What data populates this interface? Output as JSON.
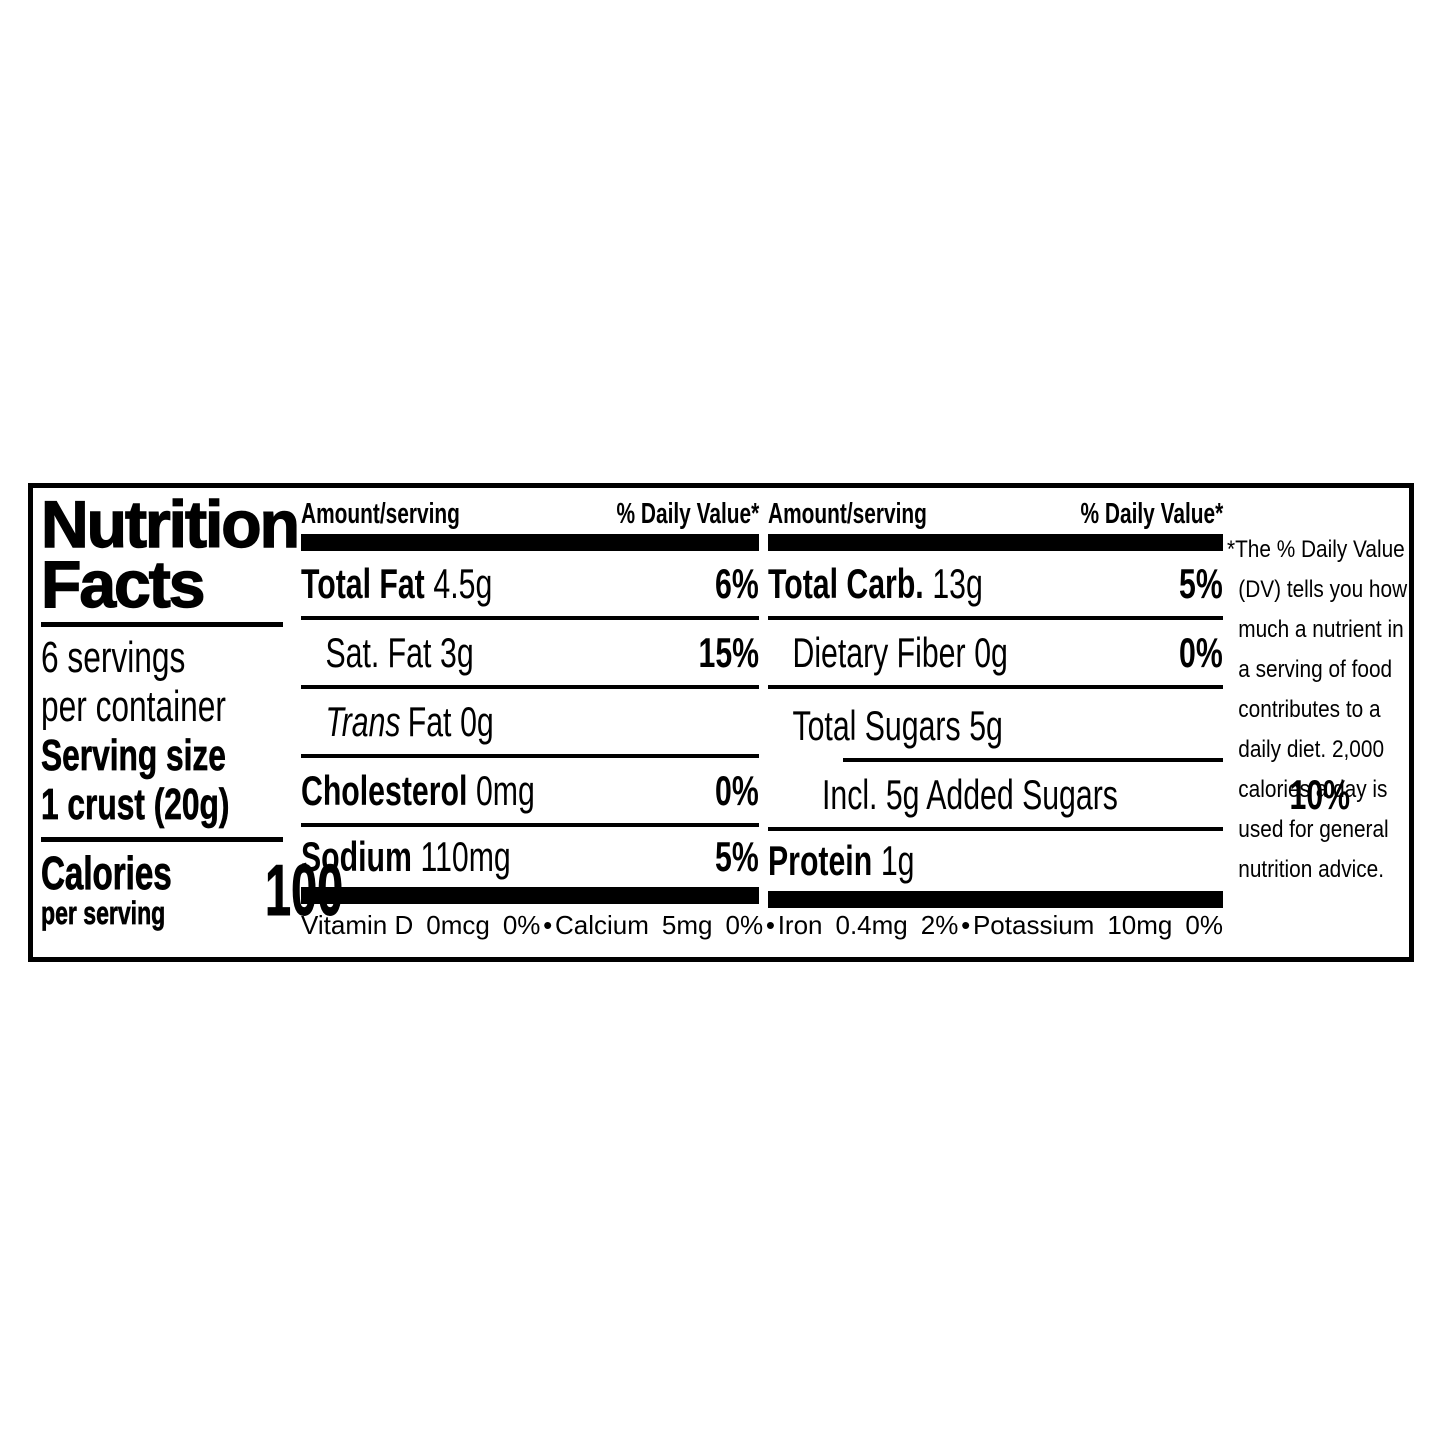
{
  "label": {
    "title_line1": "Nutrition",
    "title_line2": "Facts",
    "servings_line1": "6 servings",
    "servings_line2": "per container",
    "serving_size_label": "Serving size",
    "serving_size_value": "1 crust (20g)",
    "calories_label": "Calories",
    "calories_sublabel": "per serving",
    "calories_value": "100",
    "col1": {
      "header_amount": "Amount/serving",
      "header_dv": "% Daily Value*",
      "rows": [
        {
          "name": "Total Fat",
          "amount": "4.5g",
          "dv": "6%"
        },
        {
          "name": "Sat. Fat",
          "amount": "3g",
          "dv": "15%"
        },
        {
          "italic": "Trans",
          "name": "Fat",
          "amount": "0g",
          "dv": ""
        },
        {
          "name": "Cholesterol",
          "amount": "0mg",
          "dv": "0%"
        },
        {
          "name": "Sodium",
          "amount": "110mg",
          "dv": "5%"
        }
      ]
    },
    "col2": {
      "header_amount": "Amount/serving",
      "header_dv": "% Daily Value*",
      "rows": [
        {
          "name": "Total Carb.",
          "amount": "13g",
          "dv": "5%"
        },
        {
          "name": "Dietary Fiber",
          "amount": "0g",
          "dv": "0%"
        },
        {
          "name": "Total Sugars",
          "amount": "5g",
          "dv": ""
        },
        {
          "name": "Incl. 5g Added Sugars",
          "amount": "",
          "dv": "10%"
        },
        {
          "name": "Protein",
          "amount": "1g",
          "dv": ""
        }
      ]
    },
    "micros": {
      "bullet": "•",
      "items": [
        {
          "name": "Vitamin D",
          "amount": "0mcg",
          "dv": "0%"
        },
        {
          "name": "Calcium",
          "amount": "5mg",
          "dv": "0%"
        },
        {
          "name": "Iron",
          "amount": "0.4mg",
          "dv": "2%"
        },
        {
          "name": "Potassium",
          "amount": "10mg",
          "dv": "0%"
        }
      ]
    },
    "footnote": "*The % Daily Value (DV) tells you how much a nutrient in a serving of food contributes to a daily diet. 2,000 calories a day is used for general nutrition advice."
  }
}
